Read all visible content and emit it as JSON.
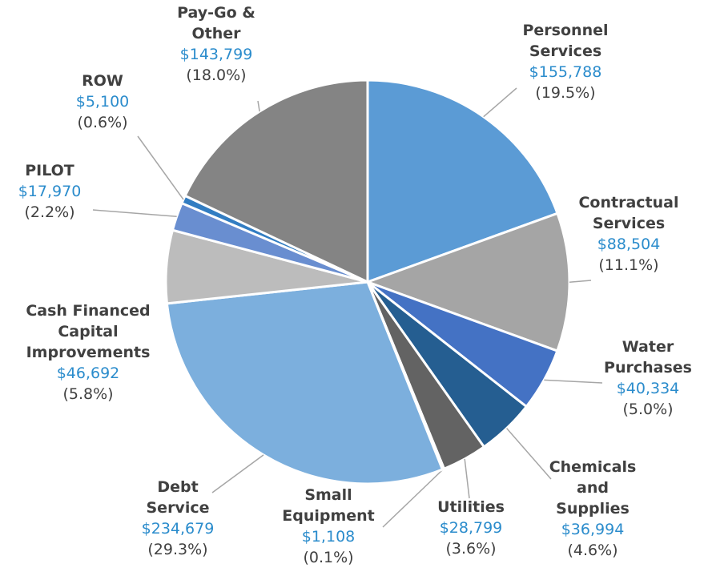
{
  "chart_data": {
    "type": "pie",
    "categories": [
      "Personnel\nServices",
      "Contractual\nServices",
      "Water\nPurchases",
      "Chemicals\nand\nSupplies",
      "Utilities",
      "Small\nEquipment",
      "Debt\nService",
      "Cash Financed\nCapital\nImprovements",
      "PILOT",
      "ROW",
      "Pay-Go &\nOther"
    ],
    "values": [
      155788,
      88504,
      40334,
      36994,
      28799,
      1108,
      234679,
      46692,
      17970,
      5100,
      143799
    ],
    "value_labels": [
      "$155,788",
      "$88,504",
      "$40,334",
      "$36,994",
      "$28,799",
      "$1,108",
      "$234,679",
      "$46,692",
      "$17,970",
      "$5,100",
      "$143,799"
    ],
    "percents": [
      19.5,
      11.1,
      5.0,
      4.6,
      3.6,
      0.1,
      29.3,
      5.8,
      2.2,
      0.6,
      18.0
    ],
    "percent_labels": [
      "(19.5%)",
      "(11.1%)",
      "(5.0%)",
      "(4.6%)",
      "(3.6%)",
      "(0.1%)",
      "(29.3%)",
      "(5.8%)",
      "(2.2%)",
      "(0.6%)",
      "(18.0%)"
    ],
    "colors": [
      "#5b9bd5",
      "#a5a5a5",
      "#4472c4",
      "#255e91",
      "#636363",
      "#5a5a5a",
      "#7cafdd",
      "#bcbcbc",
      "#698ed0",
      "#327dc2",
      "#848484"
    ]
  }
}
